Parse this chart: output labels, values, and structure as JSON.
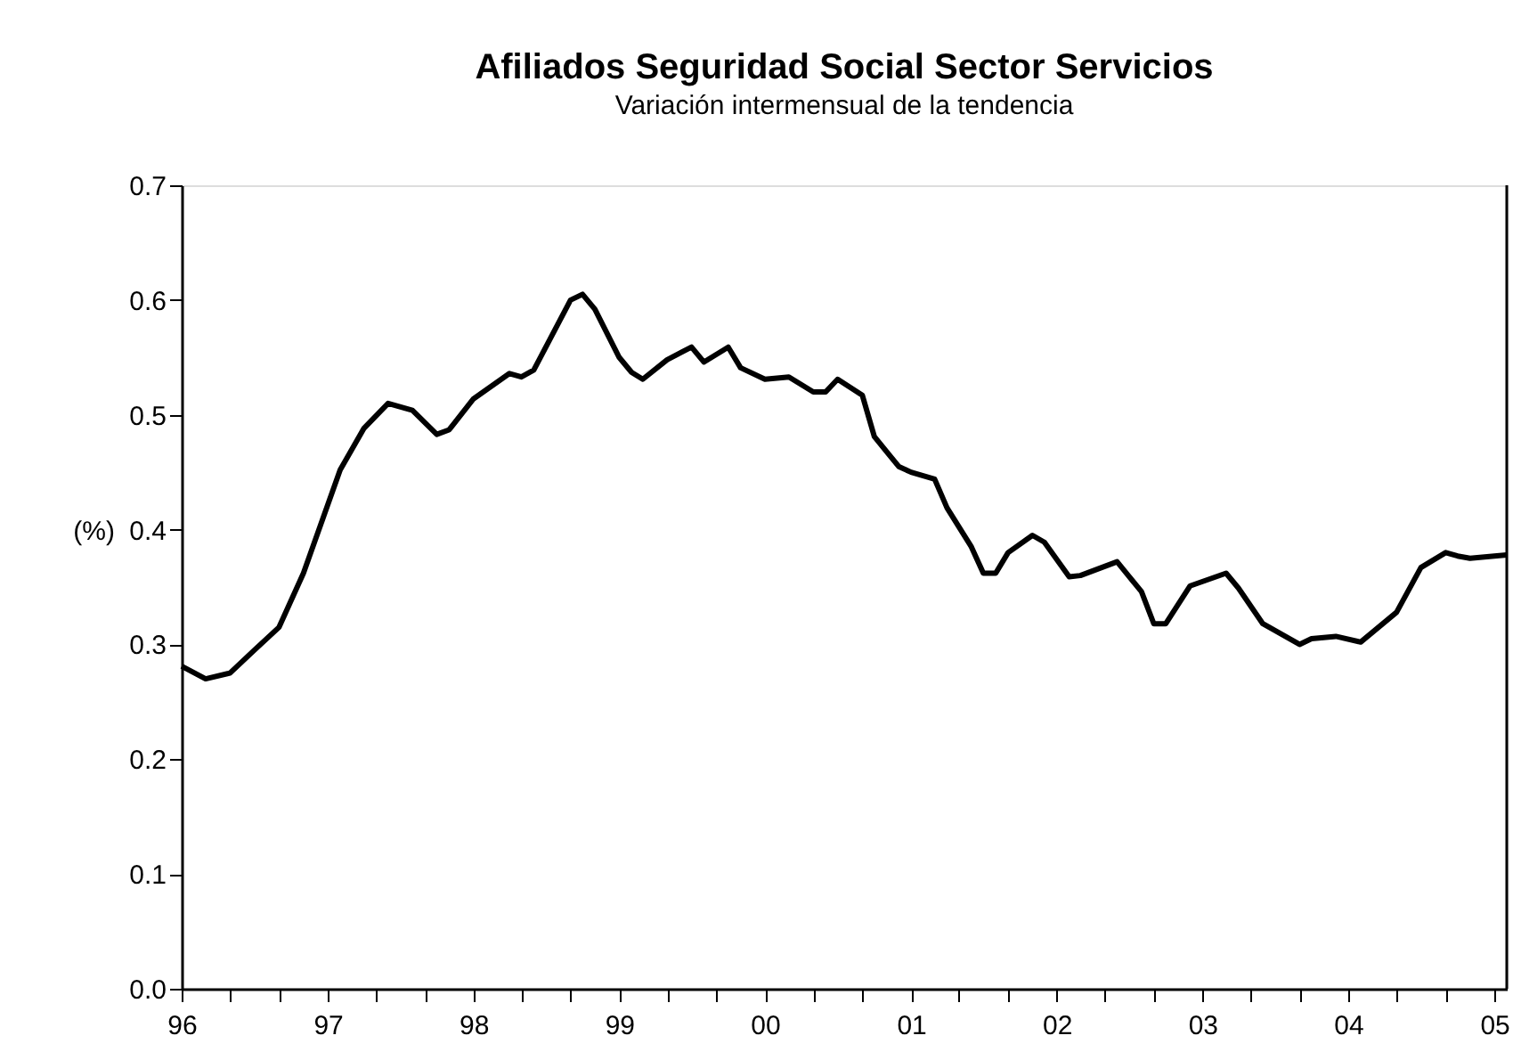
{
  "chart_data": {
    "type": "line",
    "title": "Afiliados Seguridad Social Sector Servicios",
    "subtitle": "Variación intermensual de la tendencia",
    "ylabel": "(%)",
    "x": [
      "1996-01",
      "1996-03",
      "1996-05",
      "1996-07",
      "1996-09",
      "1996-11",
      "1997-02",
      "1997-04",
      "1997-06",
      "1997-08",
      "1997-10",
      "1997-11",
      "1998-01",
      "1998-04",
      "1998-05",
      "1998-06",
      "1998-09",
      "1998-10",
      "1998-11",
      "1999-01",
      "1999-02",
      "1999-03",
      "1999-05",
      "1999-07",
      "1999-08",
      "1999-10",
      "1999-11",
      "2000-01",
      "2000-03",
      "2000-05",
      "2000-06",
      "2000-07",
      "2000-09",
      "2000-10",
      "2000-12",
      "2001-01",
      "2001-03",
      "2001-04",
      "2001-06",
      "2001-07",
      "2001-08",
      "2001-09",
      "2001-11",
      "2001-12",
      "2002-02",
      "2002-03",
      "2002-06",
      "2002-08",
      "2002-09",
      "2002-10",
      "2002-12",
      "2003-03",
      "2003-04",
      "2003-06",
      "2003-09",
      "2003-10",
      "2003-12",
      "2004-02",
      "2004-05",
      "2004-07",
      "2004-09",
      "2004-10",
      "2004-11",
      "2005-01",
      "2005-02"
    ],
    "series": [
      {
        "color": "#000000",
        "values": [
          0.281,
          0.27,
          0.275,
          0.295,
          0.315,
          0.362,
          0.452,
          0.488,
          0.51,
          0.504,
          0.483,
          0.487,
          0.514,
          0.536,
          0.533,
          0.539,
          0.6,
          0.605,
          0.592,
          0.55,
          0.537,
          0.531,
          0.548,
          0.559,
          0.546,
          0.559,
          0.541,
          0.531,
          0.533,
          0.52,
          0.52,
          0.531,
          0.517,
          0.481,
          0.455,
          0.45,
          0.444,
          0.419,
          0.385,
          0.362,
          0.362,
          0.38,
          0.395,
          0.389,
          0.359,
          0.36,
          0.372,
          0.346,
          0.318,
          0.318,
          0.351,
          0.362,
          0.349,
          0.318,
          0.3,
          0.305,
          0.307,
          0.302,
          0.328,
          0.367,
          0.38,
          0.377,
          0.375,
          0.377,
          0.378
        ]
      }
    ],
    "xlim": [
      "1996-01",
      "2005-02"
    ],
    "xticks": [
      {
        "value": "1996-01",
        "label": "96"
      },
      {
        "value": "1996-05",
        "label": null
      },
      {
        "value": "1996-09",
        "label": null
      },
      {
        "value": "1997-01",
        "label": "97"
      },
      {
        "value": "1997-05",
        "label": null
      },
      {
        "value": "1997-09",
        "label": null
      },
      {
        "value": "1998-01",
        "label": "98"
      },
      {
        "value": "1998-05",
        "label": null
      },
      {
        "value": "1998-09",
        "label": null
      },
      {
        "value": "1999-01",
        "label": "99"
      },
      {
        "value": "1999-05",
        "label": null
      },
      {
        "value": "1999-09",
        "label": null
      },
      {
        "value": "2000-01",
        "label": "00"
      },
      {
        "value": "2000-05",
        "label": null
      },
      {
        "value": "2000-09",
        "label": null
      },
      {
        "value": "2001-01",
        "label": "01"
      },
      {
        "value": "2001-05",
        "label": null
      },
      {
        "value": "2001-09",
        "label": null
      },
      {
        "value": "2002-01",
        "label": "02"
      },
      {
        "value": "2002-05",
        "label": null
      },
      {
        "value": "2002-09",
        "label": null
      },
      {
        "value": "2003-01",
        "label": "03"
      },
      {
        "value": "2003-05",
        "label": null
      },
      {
        "value": "2003-09",
        "label": null
      },
      {
        "value": "2004-01",
        "label": "04"
      },
      {
        "value": "2004-05",
        "label": null
      },
      {
        "value": "2004-09",
        "label": null
      },
      {
        "value": "2005-01",
        "label": "05"
      }
    ],
    "ylim": [
      0,
      0.7
    ],
    "yticks": [
      {
        "value": 0,
        "label": "0.0"
      },
      0.1,
      0.2,
      0.3,
      0.4,
      0.5,
      0.6,
      0.7
    ],
    "grid": false,
    "marker": "none",
    "line_style": "solid"
  }
}
